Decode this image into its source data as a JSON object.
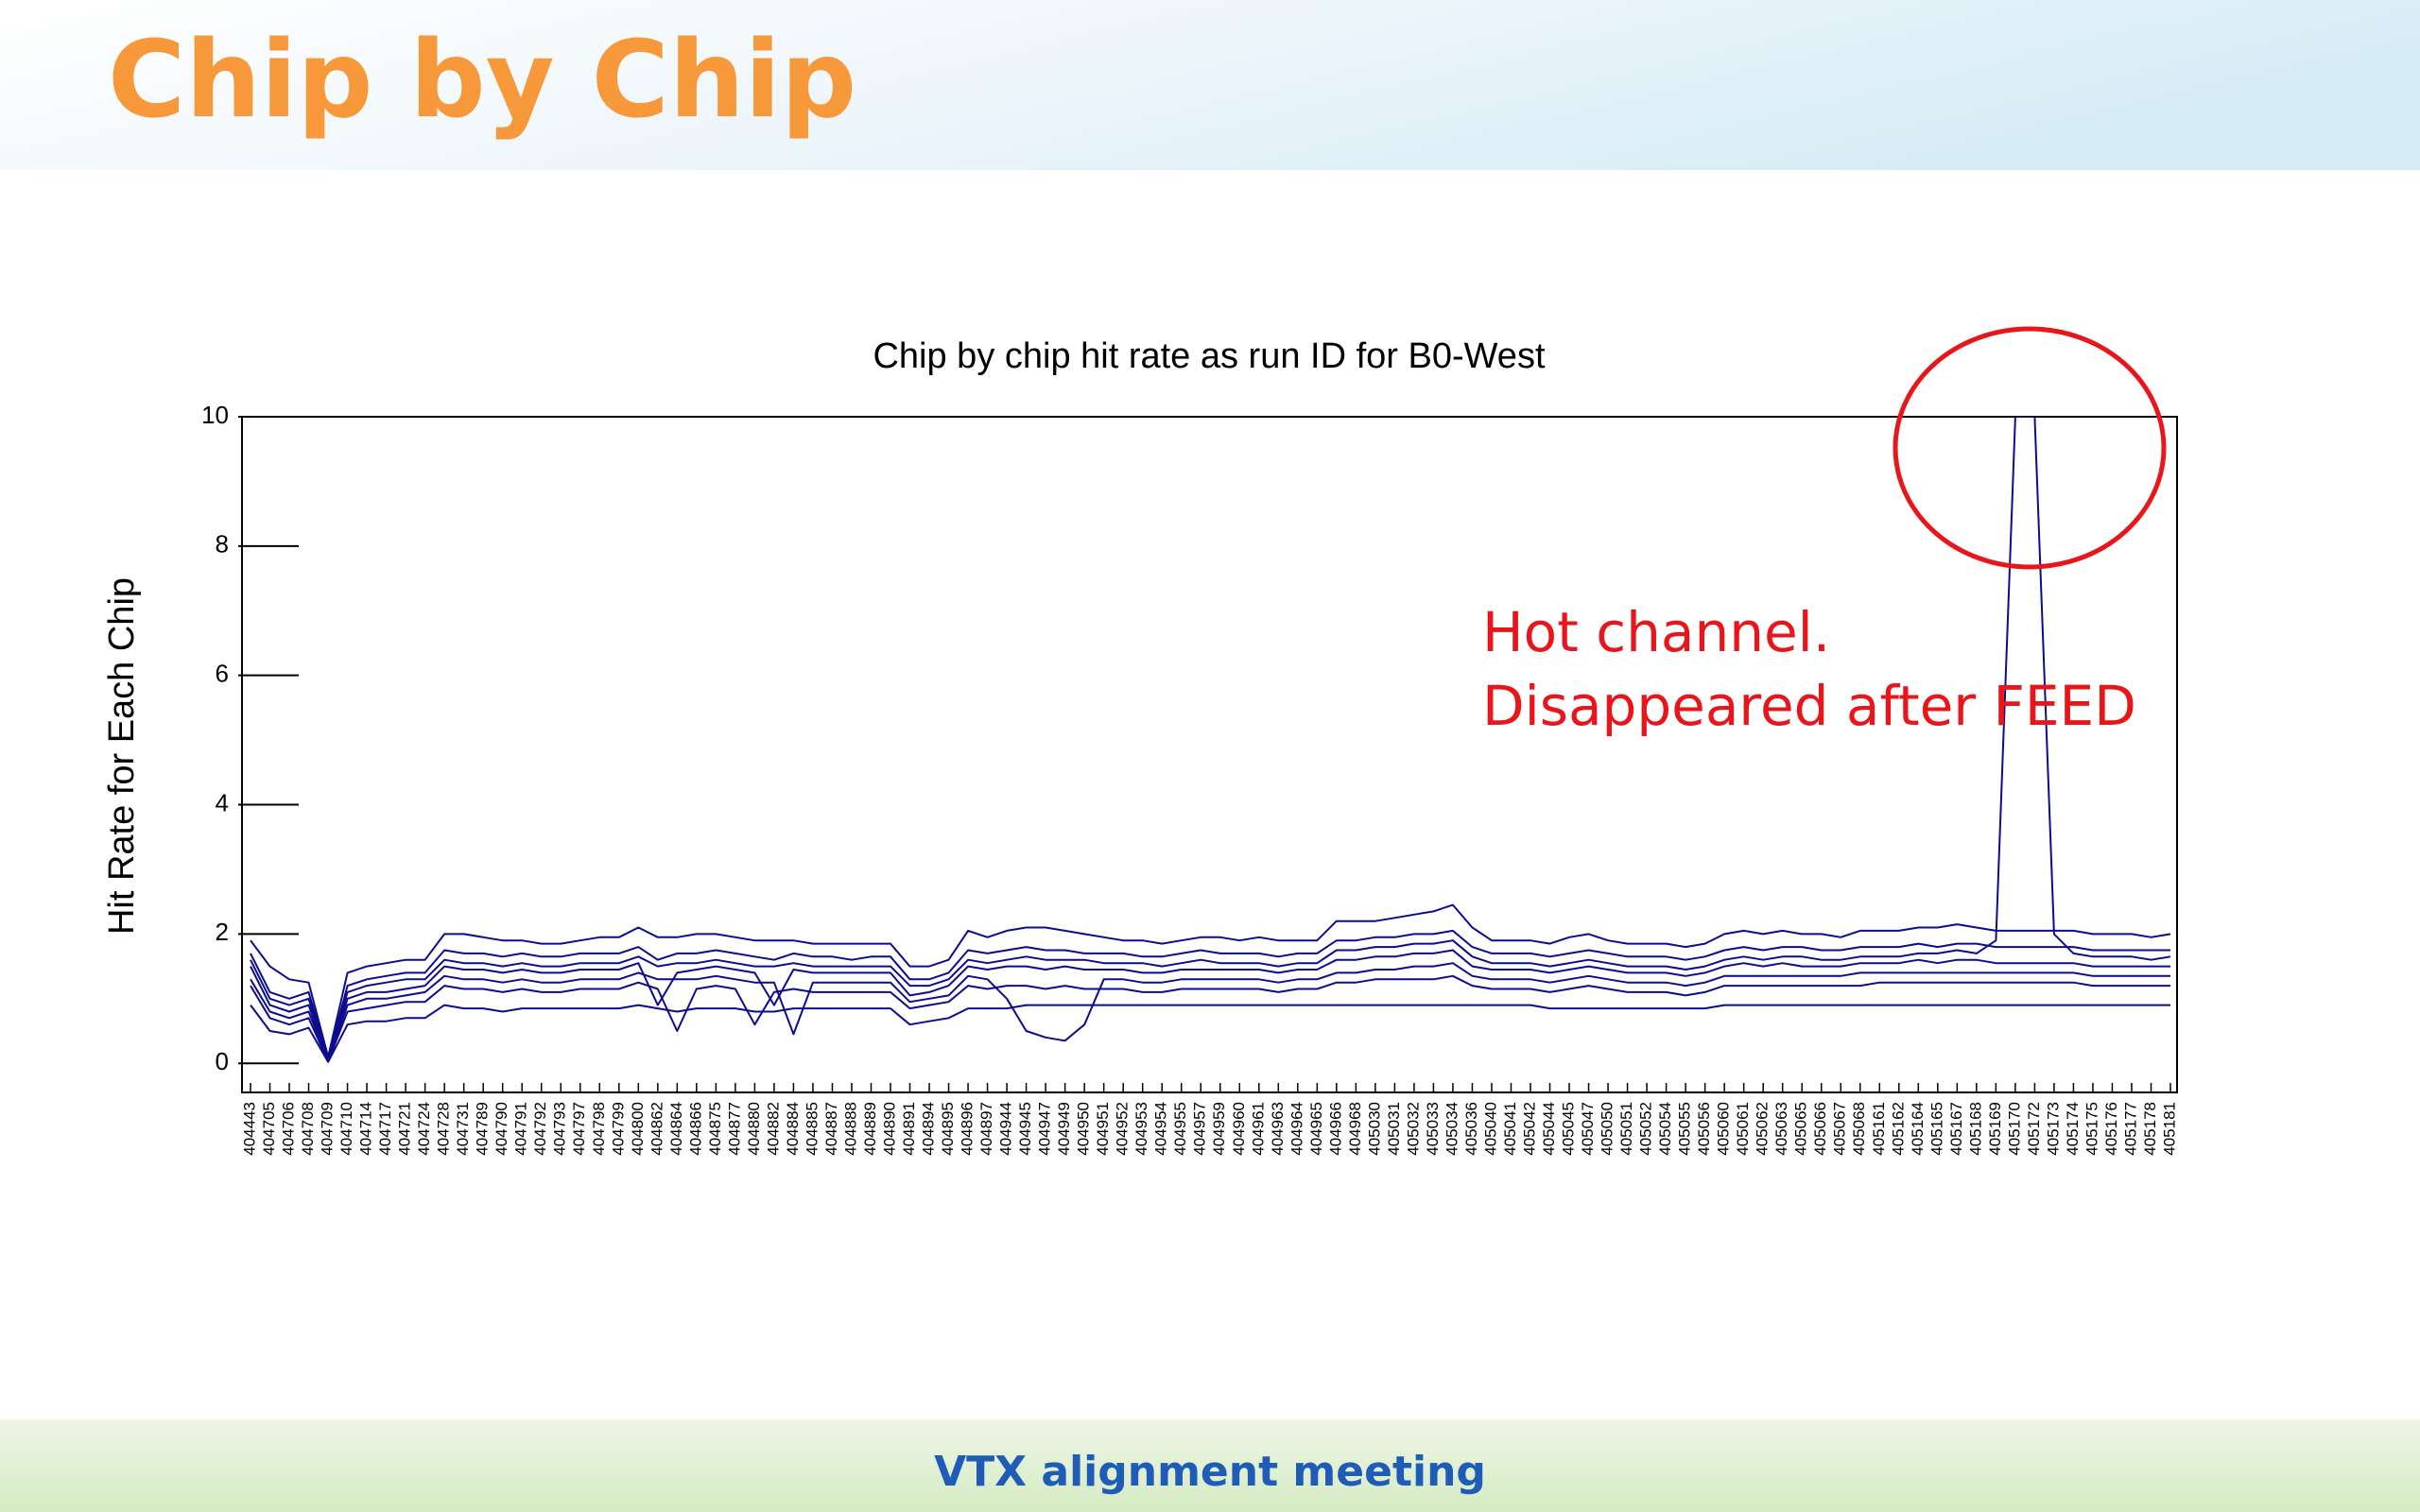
{
  "slide": {
    "title": "Chip by Chip",
    "footer": "VTX alignment meeting"
  },
  "chart_data": {
    "type": "line",
    "title": "Chip by chip hit rate as run ID for B0-West",
    "y_label": "Hit Rate for Each Chip",
    "annotations": [
      "Hot channel.",
      "Disappeared after FEED"
    ],
    "categories": [
      "404443",
      "404705",
      "404706",
      "404708",
      "404709",
      "404710",
      "404714",
      "404717",
      "404721",
      "404724",
      "404728",
      "404731",
      "404789",
      "404790",
      "404791",
      "404792",
      "404793",
      "404797",
      "404798",
      "404799",
      "404800",
      "404862",
      "404864",
      "404866",
      "404875",
      "404877",
      "404880",
      "404882",
      "404884",
      "404885",
      "404887",
      "404888",
      "404889",
      "404890",
      "404891",
      "404894",
      "404895",
      "404896",
      "404897",
      "404944",
      "404945",
      "404947",
      "404949",
      "404950",
      "404951",
      "404952",
      "404953",
      "404954",
      "404955",
      "404957",
      "404959",
      "404960",
      "404961",
      "404963",
      "404964",
      "404965",
      "404966",
      "404968",
      "405030",
      "405031",
      "405032",
      "405033",
      "405034",
      "405036",
      "405040",
      "405041",
      "405042",
      "405044",
      "405045",
      "405047",
      "405050",
      "405051",
      "405052",
      "405054",
      "405055",
      "405056",
      "405060",
      "405061",
      "405062",
      "405063",
      "405065",
      "405066",
      "405067",
      "405068",
      "405161",
      "405162",
      "405164",
      "405165",
      "405167",
      "405168",
      "405169",
      "405170",
      "405172",
      "405173",
      "405174",
      "405175",
      "405176",
      "405177",
      "405178",
      "405181"
    ],
    "ylim": [
      -0.45,
      10
    ],
    "yticks": [
      0,
      2,
      4,
      6,
      8,
      10
    ],
    "series": [
      {
        "color": "#0c0c8e",
        "values": [
          1.9,
          1.5,
          1.3,
          1.25,
          0.1,
          1.4,
          1.5,
          1.55,
          1.6,
          1.6,
          2.0,
          2.0,
          1.95,
          1.9,
          1.9,
          1.85,
          1.85,
          1.9,
          1.95,
          1.95,
          2.1,
          1.95,
          1.95,
          2.0,
          2.0,
          1.95,
          1.9,
          1.9,
          1.9,
          1.85,
          1.85,
          1.85,
          1.85,
          1.85,
          1.5,
          1.5,
          1.6,
          2.05,
          1.95,
          2.05,
          2.1,
          2.1,
          2.05,
          2.0,
          1.95,
          1.9,
          1.9,
          1.85,
          1.9,
          1.95,
          1.95,
          1.9,
          1.95,
          1.9,
          1.9,
          1.9,
          2.2,
          2.2,
          2.2,
          2.25,
          2.3,
          2.35,
          2.45,
          2.1,
          1.9,
          1.9,
          1.9,
          1.85,
          1.95,
          2.0,
          1.9,
          1.85,
          1.85,
          1.85,
          1.8,
          1.85,
          2.0,
          2.05,
          2.0,
          2.05,
          2.0,
          2.0,
          1.95,
          2.05,
          2.05,
          2.05,
          2.1,
          2.1,
          2.15,
          2.1,
          2.05,
          2.05,
          2.05,
          2.05,
          2.05,
          2.0,
          2.0,
          2.0,
          1.95,
          2.0
        ]
      },
      {
        "color": "#0c0c8e",
        "values": [
          1.7,
          1.1,
          1.0,
          1.1,
          0.08,
          1.2,
          1.3,
          1.35,
          1.4,
          1.4,
          1.75,
          1.7,
          1.7,
          1.65,
          1.7,
          1.65,
          1.65,
          1.7,
          1.7,
          1.7,
          1.8,
          1.6,
          1.7,
          1.7,
          1.75,
          1.7,
          1.65,
          1.6,
          1.7,
          1.65,
          1.65,
          1.6,
          1.65,
          1.65,
          1.3,
          1.3,
          1.4,
          1.75,
          1.7,
          1.75,
          1.8,
          1.75,
          1.75,
          1.7,
          1.7,
          1.7,
          1.65,
          1.65,
          1.7,
          1.75,
          1.7,
          1.7,
          1.7,
          1.65,
          1.7,
          1.7,
          1.9,
          1.9,
          1.95,
          1.95,
          2.0,
          2.0,
          2.05,
          1.8,
          1.7,
          1.7,
          1.7,
          1.65,
          1.7,
          1.75,
          1.7,
          1.65,
          1.65,
          1.65,
          1.6,
          1.65,
          1.75,
          1.8,
          1.75,
          1.8,
          1.8,
          1.75,
          1.75,
          1.8,
          1.8,
          1.8,
          1.85,
          1.8,
          1.85,
          1.85,
          1.8,
          1.8,
          1.8,
          1.8,
          1.8,
          1.75,
          1.75,
          1.75,
          1.75,
          1.75
        ]
      },
      {
        "color": "#0c0c8e",
        "values": [
          1.5,
          0.9,
          0.8,
          0.9,
          0.05,
          1.0,
          1.1,
          1.1,
          1.15,
          1.2,
          1.5,
          1.45,
          1.45,
          1.4,
          1.45,
          1.4,
          1.4,
          1.45,
          1.45,
          1.45,
          1.55,
          0.9,
          1.4,
          1.45,
          1.5,
          1.45,
          1.4,
          0.9,
          1.45,
          1.4,
          1.4,
          1.4,
          1.4,
          1.4,
          1.05,
          1.1,
          1.2,
          1.5,
          1.45,
          1.5,
          1.5,
          1.45,
          1.5,
          1.45,
          1.45,
          1.45,
          1.4,
          1.4,
          1.45,
          1.45,
          1.45,
          1.45,
          1.45,
          1.4,
          1.45,
          1.45,
          1.6,
          1.6,
          1.65,
          1.65,
          1.7,
          1.7,
          1.75,
          1.5,
          1.45,
          1.45,
          1.45,
          1.4,
          1.45,
          1.5,
          1.45,
          1.4,
          1.4,
          1.4,
          1.35,
          1.4,
          1.5,
          1.55,
          1.5,
          1.55,
          1.5,
          1.5,
          1.5,
          1.55,
          1.55,
          1.55,
          1.6,
          1.55,
          1.6,
          1.6,
          1.55,
          1.55,
          1.55,
          1.55,
          1.55,
          1.5,
          1.5,
          1.5,
          1.5,
          1.5
        ]
      },
      {
        "color": "#0c0c8e",
        "values": [
          1.2,
          0.7,
          0.6,
          0.7,
          0.03,
          0.8,
          0.85,
          0.9,
          0.95,
          0.95,
          1.2,
          1.15,
          1.15,
          1.1,
          1.15,
          1.1,
          1.1,
          1.15,
          1.15,
          1.15,
          1.25,
          1.15,
          0.5,
          1.15,
          1.2,
          1.15,
          0.6,
          1.1,
          1.15,
          1.1,
          1.1,
          1.1,
          1.1,
          1.1,
          0.85,
          0.9,
          0.95,
          1.2,
          1.15,
          1.2,
          1.2,
          1.15,
          1.2,
          1.15,
          1.15,
          1.15,
          1.1,
          1.1,
          1.15,
          1.15,
          1.15,
          1.15,
          1.15,
          1.1,
          1.15,
          1.15,
          1.25,
          1.25,
          1.3,
          1.3,
          1.3,
          1.3,
          1.35,
          1.2,
          1.15,
          1.15,
          1.15,
          1.1,
          1.15,
          1.2,
          1.15,
          1.1,
          1.1,
          1.1,
          1.05,
          1.1,
          1.2,
          1.2,
          1.2,
          1.2,
          1.2,
          1.2,
          1.2,
          1.2,
          1.25,
          1.25,
          1.25,
          1.25,
          1.25,
          1.25,
          1.25,
          1.25,
          1.25,
          1.25,
          1.25,
          1.2,
          1.2,
          1.2,
          1.2,
          1.2
        ]
      },
      {
        "color": "#0c0c8e",
        "values": [
          0.9,
          0.5,
          0.45,
          0.55,
          0.02,
          0.6,
          0.65,
          0.65,
          0.7,
          0.7,
          0.9,
          0.85,
          0.85,
          0.8,
          0.85,
          0.85,
          0.85,
          0.85,
          0.85,
          0.85,
          0.9,
          0.85,
          0.8,
          0.85,
          0.85,
          0.85,
          0.8,
          0.8,
          0.85,
          0.85,
          0.85,
          0.85,
          0.85,
          0.85,
          0.6,
          0.65,
          0.7,
          0.85,
          0.85,
          0.85,
          0.9,
          0.9,
          0.9,
          0.9,
          0.9,
          0.9,
          0.9,
          0.9,
          0.9,
          0.9,
          0.9,
          0.9,
          0.9,
          0.9,
          0.9,
          0.9,
          0.9,
          0.9,
          0.9,
          0.9,
          0.9,
          0.9,
          0.9,
          0.9,
          0.9,
          0.9,
          0.9,
          0.85,
          0.85,
          0.85,
          0.85,
          0.85,
          0.85,
          0.85,
          0.85,
          0.85,
          0.9,
          0.9,
          0.9,
          0.9,
          0.9,
          0.9,
          0.9,
          0.9,
          0.9,
          0.9,
          0.9,
          0.9,
          0.9,
          0.9,
          0.9,
          0.9,
          0.9,
          0.9,
          0.9,
          0.9,
          0.9,
          0.9,
          0.9,
          0.9
        ]
      },
      {
        "color": "#0c0c8e",
        "values": [
          1.3,
          0.8,
          0.7,
          0.8,
          0.04,
          0.9,
          1.0,
          1.0,
          1.05,
          1.1,
          1.35,
          1.3,
          1.3,
          1.25,
          1.3,
          1.25,
          1.25,
          1.3,
          1.3,
          1.3,
          1.4,
          1.3,
          1.3,
          1.3,
          1.35,
          1.3,
          1.25,
          1.25,
          0.45,
          1.25,
          1.25,
          1.25,
          1.25,
          1.25,
          0.95,
          1.0,
          1.05,
          1.35,
          1.3,
          1.0,
          0.5,
          0.4,
          0.35,
          0.6,
          1.3,
          1.3,
          1.25,
          1.25,
          1.3,
          1.3,
          1.3,
          1.3,
          1.3,
          1.25,
          1.3,
          1.3,
          1.4,
          1.4,
          1.45,
          1.45,
          1.5,
          1.5,
          1.55,
          1.35,
          1.3,
          1.3,
          1.3,
          1.25,
          1.3,
          1.35,
          1.3,
          1.25,
          1.25,
          1.25,
          1.2,
          1.25,
          1.35,
          1.35,
          1.35,
          1.35,
          1.35,
          1.35,
          1.35,
          1.4,
          1.4,
          1.4,
          1.4,
          1.4,
          1.4,
          1.4,
          1.4,
          1.4,
          1.4,
          1.4,
          1.4,
          1.35,
          1.35,
          1.35,
          1.35,
          1.35
        ]
      },
      {
        "color": "#0c0c8e",
        "values": [
          1.6,
          1.0,
          0.9,
          1.0,
          0.06,
          1.1,
          1.2,
          1.25,
          1.3,
          1.3,
          1.6,
          1.55,
          1.55,
          1.5,
          1.55,
          1.5,
          1.5,
          1.55,
          1.55,
          1.55,
          1.65,
          1.5,
          1.55,
          1.55,
          1.6,
          1.55,
          1.5,
          1.5,
          1.55,
          1.5,
          1.5,
          1.5,
          1.5,
          1.5,
          1.2,
          1.2,
          1.3,
          1.6,
          1.55,
          1.6,
          1.65,
          1.6,
          1.6,
          1.6,
          1.55,
          1.55,
          1.55,
          1.5,
          1.55,
          1.6,
          1.55,
          1.55,
          1.55,
          1.5,
          1.55,
          1.55,
          1.75,
          1.75,
          1.8,
          1.8,
          1.85,
          1.85,
          1.9,
          1.65,
          1.55,
          1.55,
          1.55,
          1.5,
          1.55,
          1.6,
          1.55,
          1.5,
          1.5,
          1.5,
          1.45,
          1.5,
          1.6,
          1.65,
          1.6,
          1.65,
          1.65,
          1.6,
          1.6,
          1.65,
          1.65,
          1.65,
          1.7,
          1.7,
          1.75,
          1.7,
          1.9,
          10,
          10,
          2.0,
          1.7,
          1.65,
          1.65,
          1.65,
          1.6,
          1.65
        ]
      }
    ]
  }
}
